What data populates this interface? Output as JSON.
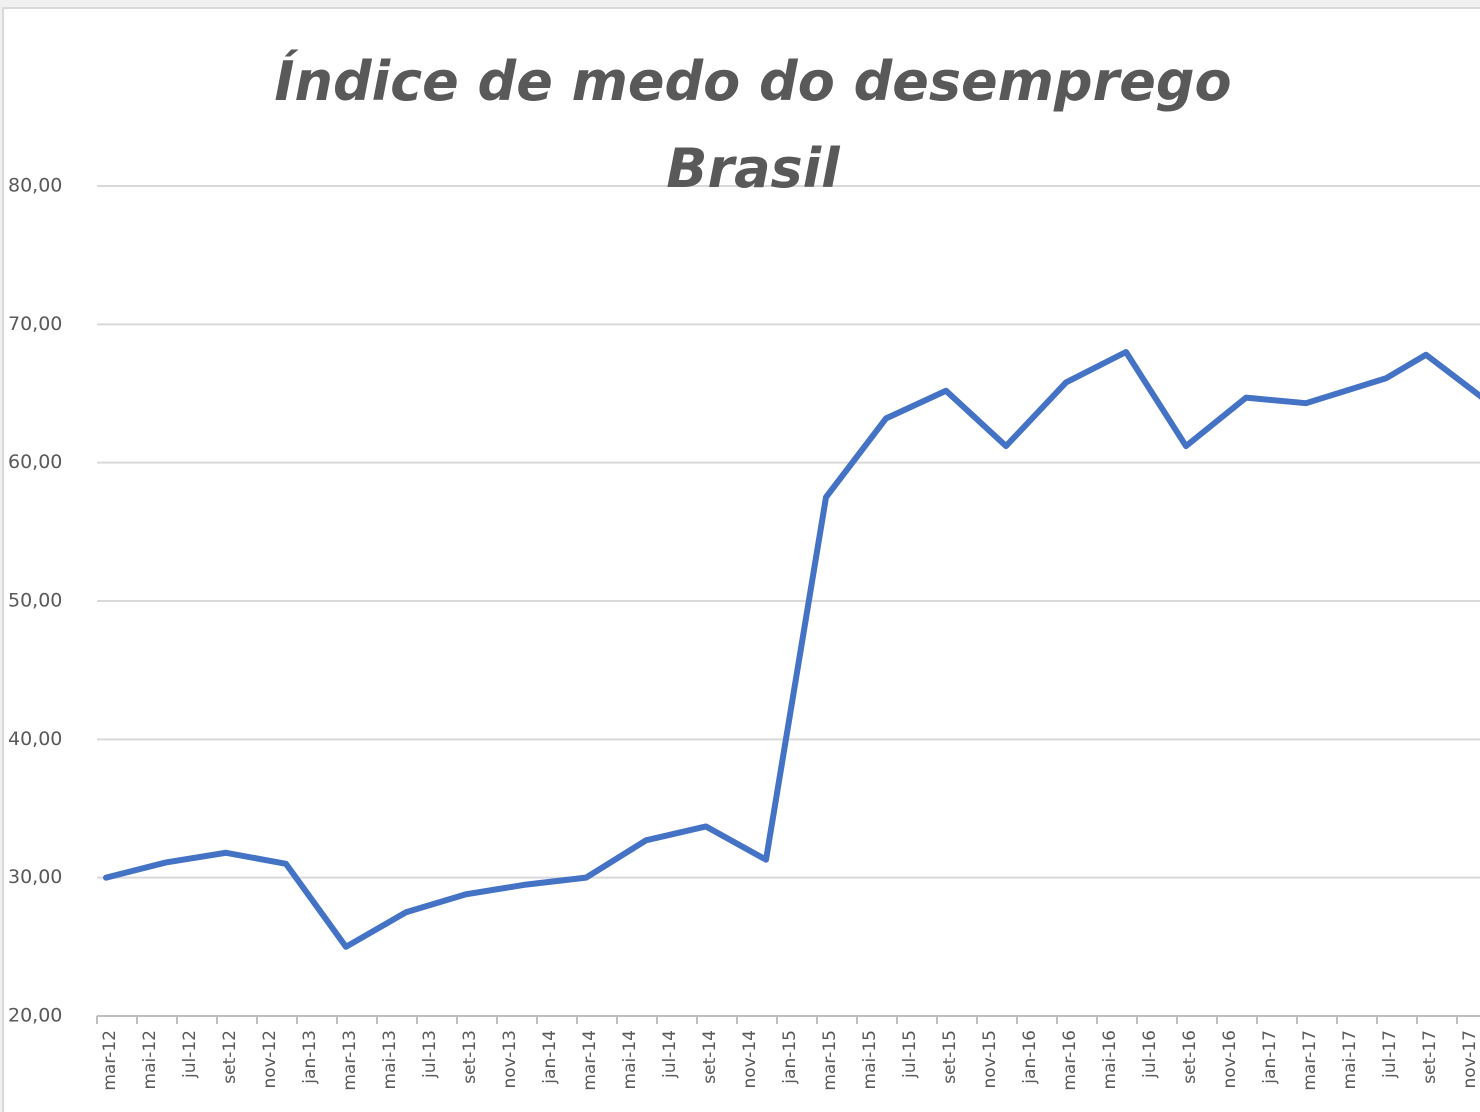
{
  "chart_data": {
    "type": "line",
    "title": "Índice de medo do desemprego",
    "subtitle": "Brasil",
    "x": [
      "2012-03",
      "2012-06",
      "2012-09",
      "2012-12",
      "2013-03",
      "2013-06",
      "2013-09",
      "2013-12",
      "2014-03",
      "2014-06",
      "2014-09",
      "2014-12",
      "2015-03",
      "2015-06",
      "2015-09",
      "2015-12",
      "2016-03",
      "2016-06",
      "2016-09",
      "2016-12",
      "2017-03",
      "2017-07",
      "2017-09",
      "2017-12"
    ],
    "series": [
      {
        "name": "Índice de medo do desemprego",
        "color": "#4472c4",
        "values": [
          30.0,
          31.1,
          31.8,
          31.0,
          25.0,
          27.5,
          28.8,
          29.5,
          30.0,
          32.7,
          33.7,
          31.3,
          57.5,
          63.2,
          65.2,
          61.2,
          65.8,
          68.0,
          61.2,
          64.7,
          64.3,
          66.1,
          67.8,
          64.5
        ]
      }
    ],
    "ylim": [
      20,
      80
    ],
    "yticks": [
      {
        "value": 20,
        "label": "20,00"
      },
      {
        "value": 30,
        "label": "30,00"
      },
      {
        "value": 40,
        "label": "40,00"
      },
      {
        "value": 50,
        "label": "50,00"
      },
      {
        "value": 60,
        "label": "60,00"
      },
      {
        "value": 70,
        "label": "70,00"
      },
      {
        "value": 80,
        "label": "80,00"
      }
    ],
    "xticks": [
      {
        "value": "2012-03",
        "label": "mar-12"
      },
      {
        "value": "2012-05",
        "label": "mai-12"
      },
      {
        "value": "2012-07",
        "label": "jul-12"
      },
      {
        "value": "2012-09",
        "label": "set-12"
      },
      {
        "value": "2012-11",
        "label": "nov-12"
      },
      {
        "value": "2013-01",
        "label": "jan-13"
      },
      {
        "value": "2013-03",
        "label": "mar-13"
      },
      {
        "value": "2013-05",
        "label": "mai-13"
      },
      {
        "value": "2013-07",
        "label": "jul-13"
      },
      {
        "value": "2013-09",
        "label": "set-13"
      },
      {
        "value": "2013-11",
        "label": "nov-13"
      },
      {
        "value": "2014-01",
        "label": "jan-14"
      },
      {
        "value": "2014-03",
        "label": "mar-14"
      },
      {
        "value": "2014-05",
        "label": "mai-14"
      },
      {
        "value": "2014-07",
        "label": "jul-14"
      },
      {
        "value": "2014-09",
        "label": "set-14"
      },
      {
        "value": "2014-11",
        "label": "nov-14"
      },
      {
        "value": "2015-01",
        "label": "jan-15"
      },
      {
        "value": "2015-03",
        "label": "mar-15"
      },
      {
        "value": "2015-05",
        "label": "mai-15"
      },
      {
        "value": "2015-07",
        "label": "jul-15"
      },
      {
        "value": "2015-09",
        "label": "set-15"
      },
      {
        "value": "2015-11",
        "label": "nov-15"
      },
      {
        "value": "2016-01",
        "label": "jan-16"
      },
      {
        "value": "2016-03",
        "label": "mar-16"
      },
      {
        "value": "2016-05",
        "label": "mai-16"
      },
      {
        "value": "2016-07",
        "label": "jul-16"
      },
      {
        "value": "2016-09",
        "label": "set-16"
      },
      {
        "value": "2016-11",
        "label": "nov-16"
      },
      {
        "value": "2017-01",
        "label": "jan-17"
      },
      {
        "value": "2017-03",
        "label": "mar-17"
      },
      {
        "value": "2017-05",
        "label": "mai-17"
      },
      {
        "value": "2017-07",
        "label": "jul-17"
      },
      {
        "value": "2017-09",
        "label": "set-17"
      },
      {
        "value": "2017-11",
        "label": "nov-17"
      }
    ],
    "grid": true
  }
}
